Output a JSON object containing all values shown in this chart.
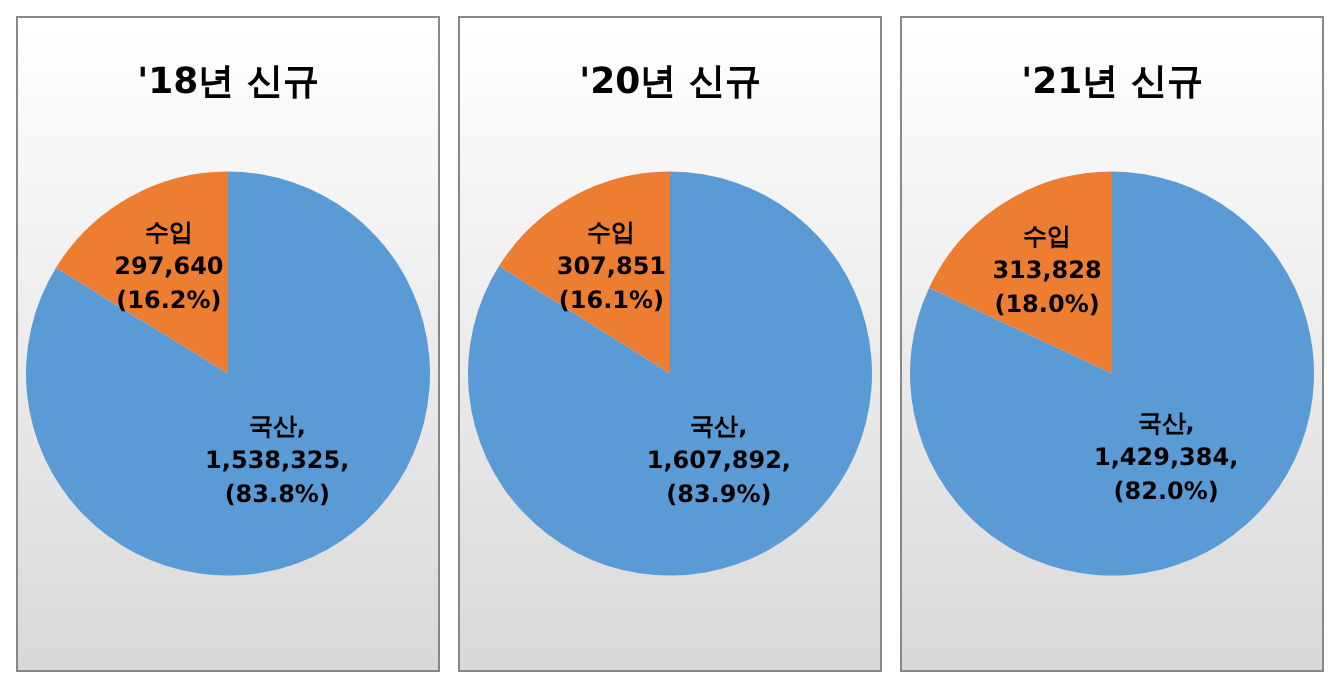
{
  "chart_data": [
    {
      "type": "pie",
      "title": "'18년 신규",
      "categories": [
        "국산",
        "수입"
      ],
      "values": [
        1538325,
        297640
      ],
      "colors": [
        "#5b9bd5",
        "#ed7d31"
      ],
      "value_labels": [
        ",\n1,538,325,\n(83.8%)",
        "\n297,640\n(16.2%)"
      ],
      "legend": false
    },
    {
      "type": "pie",
      "title": "'20년 신규",
      "categories": [
        "국산",
        "수입"
      ],
      "values": [
        1607892,
        307851
      ],
      "colors": [
        "#5b9bd5",
        "#ed7d31"
      ],
      "value_labels": [
        ",\n1,607,892,\n(83.9%)",
        "\n307,851\n(16.1%)"
      ],
      "legend": false
    },
    {
      "type": "pie",
      "title": "'21년 신규",
      "categories": [
        "국산",
        "수입"
      ],
      "values": [
        1429384,
        313828
      ],
      "colors": [
        "#5b9bd5",
        "#ed7d31"
      ],
      "value_labels": [
        ",\n1,429,384,\n(82.0%)",
        "\n313,828\n(18.0%)"
      ],
      "legend": false
    }
  ]
}
